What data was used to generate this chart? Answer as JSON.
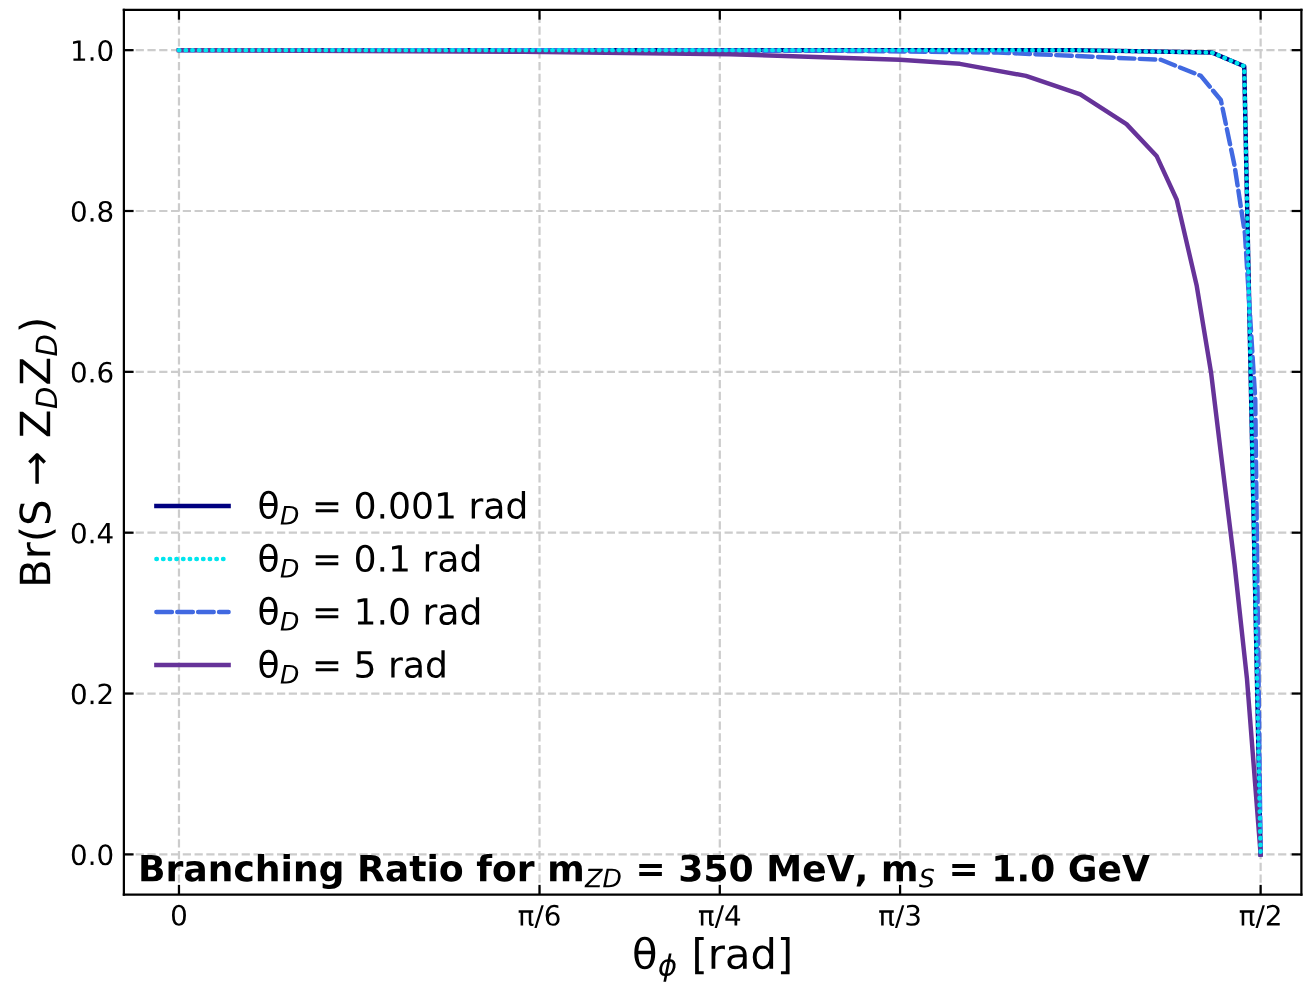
{
  "chart_data": {
    "type": "line",
    "xlabel": "θ$_{ϕ}$ [rad]",
    "ylabel": "Br(S → Z$_{D}$Z$_{D}$)",
    "annotations": [
      "Branching Ratio for m$_{ZD}$ = 350 MeV, m$_{S}$ = 1.0 GeV"
    ],
    "xlim": [
      -0.08,
      1.63
    ],
    "ylim": [
      -0.05,
      1.05
    ],
    "xticks": [
      0,
      {
        "value": 0.5236,
        "label": "π/6"
      },
      {
        "value": 0.7854,
        "label": "π/4"
      },
      {
        "value": 1.0472,
        "label": "π/3"
      },
      {
        "value": 1.5708,
        "label": "π/2"
      }
    ],
    "yticks": [
      {
        "value": 0,
        "label": "0.0"
      },
      {
        "value": 0.2,
        "label": "0.2"
      },
      {
        "value": 0.4,
        "label": "0.4"
      },
      {
        "value": 0.6,
        "label": "0.6"
      },
      {
        "value": 0.8,
        "label": "0.8"
      },
      {
        "value": 1.0,
        "label": "1.0"
      }
    ],
    "grid": true,
    "legend": "lower left",
    "series": [
      {
        "name": "θ$_{D}$ = 0.001 rad",
        "color": "#000080",
        "line_style": "solid",
        "x": [
          0,
          0.5,
          1.0,
          1.3,
          1.5,
          1.547,
          1.5708
        ],
        "values": [
          1.0,
          1.0,
          1.0,
          1.0,
          0.997,
          0.98,
          0
        ]
      },
      {
        "name": "θ$_{D}$ = 0.1 rad",
        "color": "#00e5ee",
        "line_style": "dotted",
        "x": [
          0,
          0.5,
          1.0,
          1.3,
          1.5,
          1.547,
          1.5708
        ],
        "values": [
          1.0,
          1.0,
          1.0,
          1.0,
          0.997,
          0.98,
          0
        ]
      },
      {
        "name": "θ$_{D}$ = 1.0 rad",
        "color": "#4169e1",
        "line_style": "dashed",
        "x": [
          0,
          0.5,
          1.0,
          1.19,
          1.426,
          1.484,
          1.513,
          1.533,
          1.548,
          1.563,
          1.5708
        ],
        "values": [
          1.0,
          1.0,
          0.999,
          0.997,
          0.988,
          0.968,
          0.938,
          0.856,
          0.772,
          0.566,
          0
        ]
      },
      {
        "name": "θ$_{D}$ = 5 rad",
        "color": "#663399",
        "line_style": "solid",
        "x": [
          0,
          0.5,
          0.8,
          1.047,
          1.134,
          1.23,
          1.309,
          1.376,
          1.42,
          1.449,
          1.478,
          1.499,
          1.513,
          1.533,
          1.551,
          1.5708
        ],
        "values": [
          1.0,
          0.998,
          0.995,
          0.988,
          0.983,
          0.968,
          0.945,
          0.908,
          0.868,
          0.814,
          0.707,
          0.598,
          0.499,
          0.36,
          0.218,
          0
        ]
      }
    ]
  }
}
